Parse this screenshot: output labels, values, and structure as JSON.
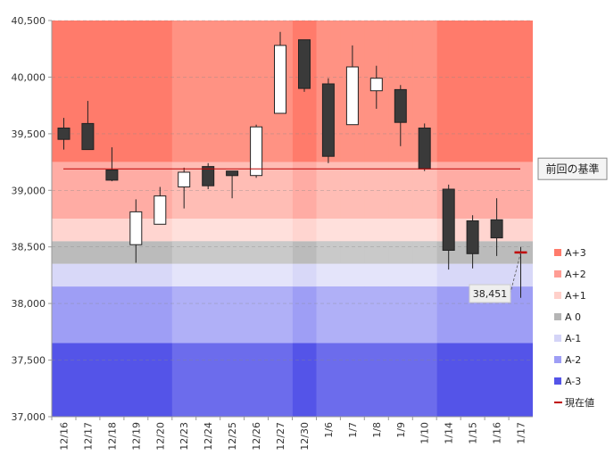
{
  "chart_data": {
    "type": "candlestick",
    "categories": [
      "12/16",
      "12/17",
      "12/18",
      "12/19",
      "12/20",
      "12/23",
      "12/24",
      "12/25",
      "12/26",
      "12/27",
      "12/30",
      "1/6",
      "1/7",
      "1/8",
      "1/9",
      "1/10",
      "1/14",
      "1/15",
      "1/16",
      "1/17"
    ],
    "ohlc": [
      {
        "open": 39550,
        "high": 39640,
        "low": 39360,
        "close": 39450
      },
      {
        "open": 39590,
        "high": 39790,
        "low": 39360,
        "close": 39360
      },
      {
        "open": 39180,
        "high": 39380,
        "low": 39080,
        "close": 39090
      },
      {
        "open": 38520,
        "high": 38920,
        "low": 38360,
        "close": 38810
      },
      {
        "open": 38700,
        "high": 39030,
        "low": 38700,
        "close": 38950
      },
      {
        "open": 39030,
        "high": 39200,
        "low": 38840,
        "close": 39160
      },
      {
        "open": 39210,
        "high": 39240,
        "low": 39010,
        "close": 39040
      },
      {
        "open": 39170,
        "high": 39170,
        "low": 38930,
        "close": 39130
      },
      {
        "open": 39130,
        "high": 39580,
        "low": 39110,
        "close": 39560
      },
      {
        "open": 39680,
        "high": 40400,
        "low": 39680,
        "close": 40280
      },
      {
        "open": 40330,
        "high": 40330,
        "low": 39870,
        "close": 39900
      },
      {
        "open": 39940,
        "high": 39990,
        "low": 39240,
        "close": 39300
      },
      {
        "open": 39580,
        "high": 40280,
        "low": 39580,
        "close": 40090
      },
      {
        "open": 39880,
        "high": 40100,
        "low": 39720,
        "close": 39990
      },
      {
        "open": 39890,
        "high": 39930,
        "low": 39390,
        "close": 39600
      },
      {
        "open": 39550,
        "high": 39590,
        "low": 39170,
        "close": 39190
      },
      {
        "open": 39010,
        "high": 39050,
        "low": 38300,
        "close": 38470
      },
      {
        "open": 38730,
        "high": 38780,
        "low": 38310,
        "close": 38440
      },
      {
        "open": 38740,
        "high": 38930,
        "low": 38420,
        "close": 38580
      },
      {
        "open": 38451,
        "high": 38500,
        "low": 38050,
        "close": 38451
      }
    ],
    "ylim": [
      37000,
      40500
    ],
    "yticks": [
      "37,000",
      "37,500",
      "38,000",
      "38,500",
      "39,000",
      "39,500",
      "40,000",
      "40,500"
    ],
    "ytick_values": [
      37000,
      37500,
      38000,
      38500,
      39000,
      39500,
      40000,
      40500
    ],
    "base_price": 39190,
    "current_price": 38451,
    "current_price_label": "38,451",
    "base_label": "前回の基準",
    "bands": [
      {
        "name": "A+3",
        "from": 39250,
        "to": 40500,
        "color": "#ff7b6b",
        "col_color": "#ff9283"
      },
      {
        "name": "A+2",
        "from": 38750,
        "to": 39250,
        "color": "#ffaca4",
        "col_color": "#ffbdb5"
      },
      {
        "name": "A+1",
        "from": 38550,
        "to": 38750,
        "color": "#ffd5d0",
        "col_color": "#ffe0dc"
      },
      {
        "name": "A 0",
        "from": 38350,
        "to": 38550,
        "color": "#bbbbbb",
        "col_color": "#c9c9c9"
      },
      {
        "name": "A-1",
        "from": 38150,
        "to": 38350,
        "color": "#d8d8f8",
        "col_color": "#e4e4fa"
      },
      {
        "name": "A-2",
        "from": 37650,
        "to": 38150,
        "color": "#9e9ef5",
        "col_color": "#b0b0f7"
      },
      {
        "name": "A-3",
        "from": 37000,
        "to": 37650,
        "color": "#5454e8",
        "col_color": "#6c6cec"
      }
    ],
    "column_shading": [
      "12/23",
      "12/24",
      "12/25",
      "12/26",
      "12/27",
      "1/6",
      "1/7",
      "1/8",
      "1/9",
      "1/10"
    ],
    "legend": [
      {
        "label": "A+3",
        "color": "#ff7b6b",
        "kind": "square"
      },
      {
        "label": "A+2",
        "color": "#ff9d94",
        "kind": "square"
      },
      {
        "label": "A+1",
        "color": "#ffd0ca",
        "kind": "square"
      },
      {
        "label": "A 0",
        "color": "#b5b5b5",
        "kind": "square"
      },
      {
        "label": "A-1",
        "color": "#d4d4f7",
        "kind": "square"
      },
      {
        "label": "A-2",
        "color": "#9e9ef5",
        "kind": "square"
      },
      {
        "label": "A-3",
        "color": "#5454e8",
        "kind": "square"
      },
      {
        "label": "現在値",
        "color": "#c00000",
        "kind": "line"
      }
    ],
    "colors": {
      "up_fill": "#ffffff",
      "down_fill": "#3a3a3a",
      "base_line": "#c00000",
      "current_marker": "#c00000",
      "grid": "#888888"
    }
  }
}
